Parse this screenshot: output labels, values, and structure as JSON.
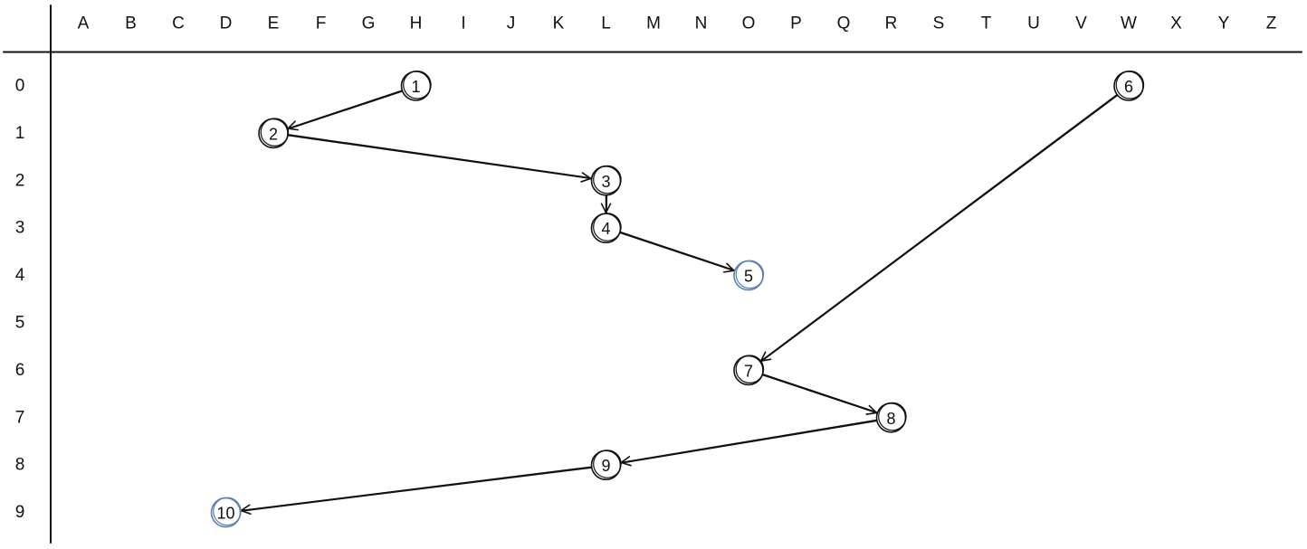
{
  "columns": [
    "A",
    "B",
    "C",
    "D",
    "E",
    "F",
    "G",
    "H",
    "I",
    "J",
    "K",
    "L",
    "M",
    "N",
    "O",
    "P",
    "Q",
    "R",
    "S",
    "T",
    "U",
    "V",
    "W",
    "X",
    "Y",
    "Z"
  ],
  "rows": [
    "0",
    "1",
    "2",
    "3",
    "4",
    "5",
    "6",
    "7",
    "8",
    "9"
  ],
  "colors": {
    "default_node": "#111111",
    "highlight_node": "#5b7fb8",
    "edge": "#111111"
  },
  "nodes": [
    {
      "id": 1,
      "label": "1",
      "col": 7,
      "row": 0,
      "highlight": false
    },
    {
      "id": 2,
      "label": "2",
      "col": 4,
      "row": 1,
      "highlight": false
    },
    {
      "id": 3,
      "label": "3",
      "col": 11,
      "row": 2,
      "highlight": false
    },
    {
      "id": 4,
      "label": "4",
      "col": 11,
      "row": 3,
      "highlight": false
    },
    {
      "id": 5,
      "label": "5",
      "col": 14,
      "row": 4,
      "highlight": true
    },
    {
      "id": 6,
      "label": "6",
      "col": 22,
      "row": 0,
      "highlight": false
    },
    {
      "id": 7,
      "label": "7",
      "col": 14,
      "row": 6,
      "highlight": false
    },
    {
      "id": 8,
      "label": "8",
      "col": 17,
      "row": 7,
      "highlight": false
    },
    {
      "id": 9,
      "label": "9",
      "col": 11,
      "row": 8,
      "highlight": false
    },
    {
      "id": 10,
      "label": "10",
      "col": 3,
      "row": 9,
      "highlight": true
    }
  ],
  "edges": [
    {
      "from": 1,
      "to": 2
    },
    {
      "from": 2,
      "to": 3
    },
    {
      "from": 3,
      "to": 4
    },
    {
      "from": 4,
      "to": 5
    },
    {
      "from": 6,
      "to": 7
    },
    {
      "from": 7,
      "to": 8
    },
    {
      "from": 8,
      "to": 9
    },
    {
      "from": 9,
      "to": 10
    }
  ]
}
